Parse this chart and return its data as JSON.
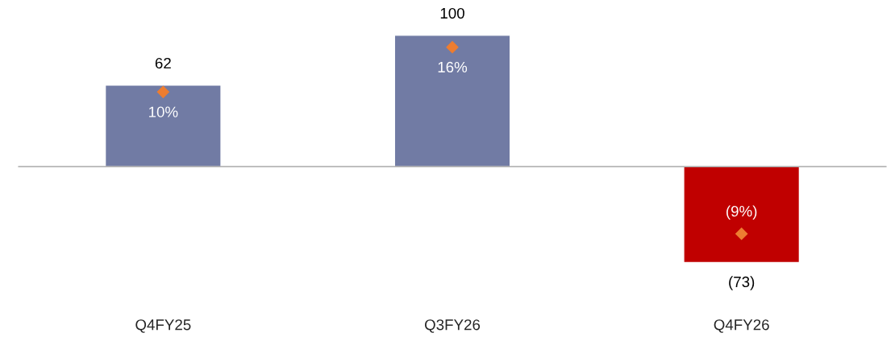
{
  "chart_data": {
    "type": "bar",
    "categories": [
      "Q4FY25",
      "Q3FY26",
      "Q4FY26"
    ],
    "tick_labels": "x",
    "grid": false,
    "series": [
      {
        "colors": [
          "#717ba4",
          "#717ba4",
          "#c00000"
        ],
        "values": [
          62,
          100,
          -73
        ],
        "value_labels": [
          "62",
          "100",
          "(73)"
        ]
      },
      {
        "type": "scatter",
        "axis": "y2",
        "marker": "diamond",
        "color": "#ed7d31",
        "values": [
          10,
          16,
          -9
        ],
        "value_labels": [
          "10%",
          "16%",
          "(9%)"
        ]
      }
    ]
  }
}
